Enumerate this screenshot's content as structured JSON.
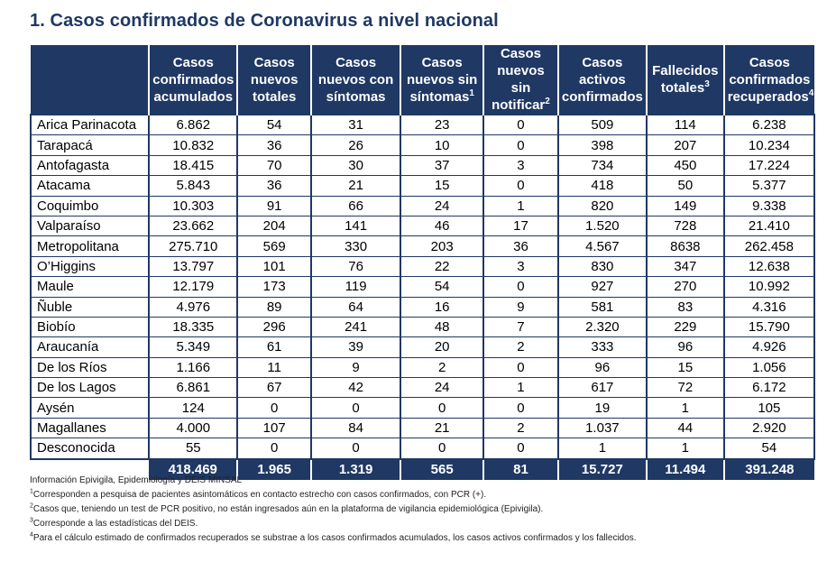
{
  "title": "1. Casos confirmados de Coronavirus a nivel nacional",
  "headers": [
    {
      "text": "",
      "sup": ""
    },
    {
      "text": "Casos confirmados acumulados",
      "sup": ""
    },
    {
      "text": "Casos nuevos totales",
      "sup": ""
    },
    {
      "text": "Casos nuevos con síntomas",
      "sup": ""
    },
    {
      "text": "Casos nuevos sin síntomas",
      "sup": "1"
    },
    {
      "text": "Casos nuevos sin notificar",
      "sup": "2"
    },
    {
      "text": "Casos activos confirmados",
      "sup": ""
    },
    {
      "text": "Fallecidos totales",
      "sup": "3"
    },
    {
      "text": "Casos confirmados recuperados",
      "sup": "4"
    }
  ],
  "rows": [
    [
      "Arica Parinacota",
      "6.862",
      "54",
      "31",
      "23",
      "0",
      "509",
      "114",
      "6.238"
    ],
    [
      "Tarapacá",
      "10.832",
      "36",
      "26",
      "10",
      "0",
      "398",
      "207",
      "10.234"
    ],
    [
      "Antofagasta",
      "18.415",
      "70",
      "30",
      "37",
      "3",
      "734",
      "450",
      "17.224"
    ],
    [
      "Atacama",
      "5.843",
      "36",
      "21",
      "15",
      "0",
      "418",
      "50",
      "5.377"
    ],
    [
      "Coquimbo",
      "10.303",
      "91",
      "66",
      "24",
      "1",
      "820",
      "149",
      "9.338"
    ],
    [
      "Valparaíso",
      "23.662",
      "204",
      "141",
      "46",
      "17",
      "1.520",
      "728",
      "21.410"
    ],
    [
      "Metropolitana",
      "275.710",
      "569",
      "330",
      "203",
      "36",
      "4.567",
      "8638",
      "262.458"
    ],
    [
      "O’Higgins",
      "13.797",
      "101",
      "76",
      "22",
      "3",
      "830",
      "347",
      "12.638"
    ],
    [
      "Maule",
      "12.179",
      "173",
      "119",
      "54",
      "0",
      "927",
      "270",
      "10.992"
    ],
    [
      "Ñuble",
      "4.976",
      "89",
      "64",
      "16",
      "9",
      "581",
      "83",
      "4.316"
    ],
    [
      "Biobío",
      "18.335",
      "296",
      "241",
      "48",
      "7",
      "2.320",
      "229",
      "15.790"
    ],
    [
      "Araucanía",
      "5.349",
      "61",
      "39",
      "20",
      "2",
      "333",
      "96",
      "4.926"
    ],
    [
      "De los Ríos",
      "1.166",
      "11",
      "9",
      "2",
      "0",
      "96",
      "15",
      "1.056"
    ],
    [
      "De los Lagos",
      "6.861",
      "67",
      "42",
      "24",
      "1",
      "617",
      "72",
      "6.172"
    ],
    [
      "Aysén",
      "124",
      "0",
      "0",
      "0",
      "0",
      "19",
      "1",
      "105"
    ],
    [
      "Magallanes",
      "4.000",
      "107",
      "84",
      "21",
      "2",
      "1.037",
      "44",
      "2.920"
    ],
    [
      "Desconocida",
      "55",
      "0",
      "0",
      "0",
      "0",
      "1",
      "1",
      "54"
    ]
  ],
  "totals": [
    "",
    "418.469",
    "1.965",
    "1.319",
    "565",
    "81",
    "15.727",
    "11.494",
    "391.248"
  ],
  "notes": [
    {
      "sup": "",
      "text": "Información Epivigila, Epidemiología y DEIS MINSAL"
    },
    {
      "sup": "1",
      "text": "Corresponden a pesquisa de pacientes asintomáticos en contacto estrecho con casos confirmados, con PCR (+)."
    },
    {
      "sup": "2",
      "text": "Casos que, teniendo un test de PCR positivo, no están ingresados aún en la plataforma de vigilancia epidemiológica (Epivigila)."
    },
    {
      "sup": "3",
      "text": "Corresponde a las estadísticas del DEIS."
    },
    {
      "sup": "4",
      "text": "Para el cálculo estimado de confirmados recuperados se substrae a los casos confirmados acumulados, los casos activos confirmados y los fallecidos."
    }
  ],
  "colors": {
    "header_bg": "#1f3864",
    "title": "#1f3864"
  }
}
